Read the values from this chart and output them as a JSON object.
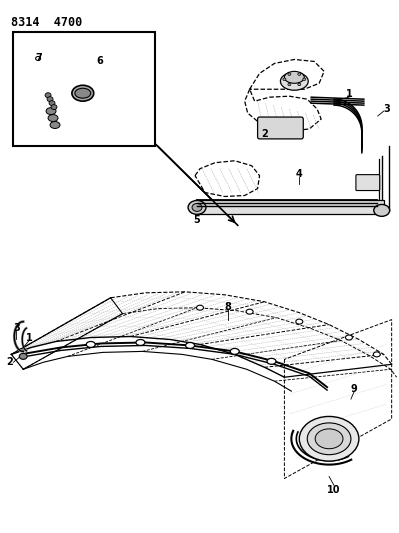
{
  "title": "8314  4700",
  "bg_color": "#ffffff",
  "lc": "#000000",
  "fig_width": 3.99,
  "fig_height": 5.33,
  "dpi": 100
}
